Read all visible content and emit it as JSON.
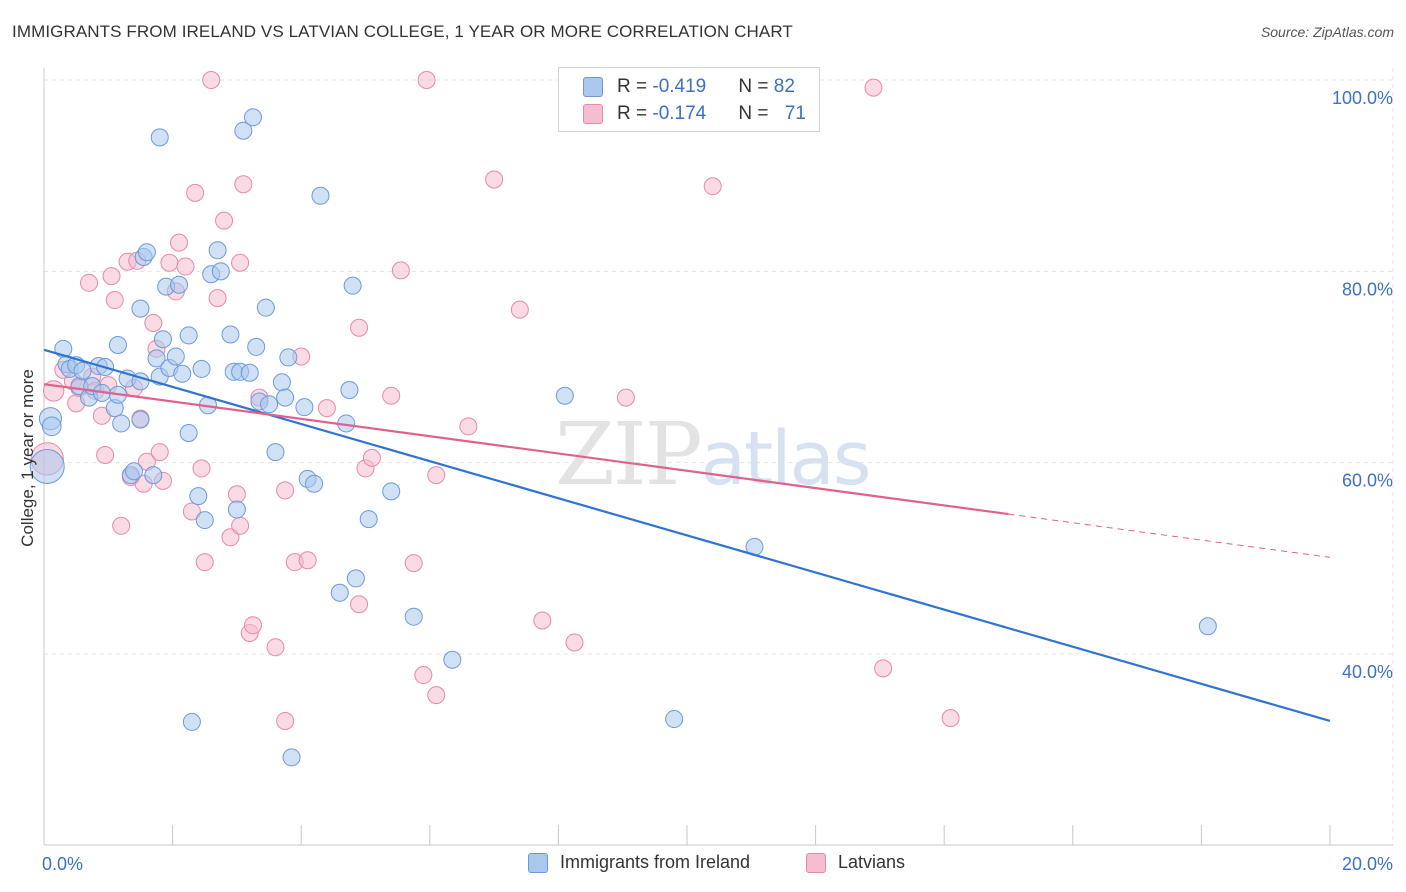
{
  "title": "IMMIGRANTS FROM IRELAND VS LATVIAN COLLEGE, 1 YEAR OR MORE CORRELATION CHART",
  "source": "Source: ZipAtlas.com",
  "watermark": {
    "zip": "ZIP",
    "atlas": "atlas"
  },
  "legend": {
    "rows": [
      {
        "r_label": "R = ",
        "r_value": "-0.419",
        "n_label": "N = ",
        "n_value": "82"
      },
      {
        "r_label": "R = ",
        "r_value": "-0.174",
        "n_label": "N = ",
        "n_value": "71"
      }
    ]
  },
  "bottom_legend": [
    "Immigrants from Ireland",
    "Latvians"
  ],
  "colors": {
    "blue_fill": "#aac8ee",
    "blue_stroke": "#6d9ad6",
    "blue_line": "#2f74d0",
    "pink_fill": "#f6bcd0",
    "pink_stroke": "#e58aaa",
    "pink_line": "#e0608e",
    "grid": "#e4e4e4",
    "axis_text": "#3b72c4"
  },
  "chart_data": {
    "type": "scatter",
    "title": "IMMIGRANTS FROM IRELAND VS LATVIAN COLLEGE, 1 YEAR OR MORE CORRELATION CHART",
    "xlabel": "",
    "ylabel": "College, 1 year or more",
    "xlim": [
      0,
      20
    ],
    "ylim": [
      20,
      102
    ],
    "x_ticks": [
      {
        "value": 0,
        "label": "0.0%"
      },
      {
        "value": 20,
        "label": "20.0%"
      }
    ],
    "y_ticks": [
      {
        "value": 40,
        "label": "40.0%"
      },
      {
        "value": 60,
        "label": "60.0%"
      },
      {
        "value": 80,
        "label": "80.0%"
      },
      {
        "value": 100,
        "label": "100.0%"
      }
    ],
    "grid": true,
    "legend_position": "top-center",
    "series": [
      {
        "name": "Immigrants from Ireland",
        "r": -0.419,
        "n": 82,
        "trend": {
          "x": [
            0,
            20
          ],
          "y": [
            71.8,
            33.0
          ],
          "dashed_from": null
        },
        "points": [
          [
            0.05,
            59.6,
            2.0
          ],
          [
            0.1,
            64.6,
            1.3
          ],
          [
            0.12,
            63.8,
            1.1
          ],
          [
            0.3,
            71.9,
            1.0
          ],
          [
            0.35,
            70.3,
            1.0
          ],
          [
            0.4,
            69.8,
            1.0
          ],
          [
            0.5,
            70.2,
            1.0
          ],
          [
            0.55,
            68.0,
            1.0
          ],
          [
            0.6,
            69.6,
            1.0
          ],
          [
            0.7,
            66.8,
            1.0
          ],
          [
            0.75,
            68.0,
            1.0
          ],
          [
            0.85,
            70.1,
            1.0
          ],
          [
            0.9,
            67.3,
            1.0
          ],
          [
            0.95,
            70.0,
            1.0
          ],
          [
            1.1,
            65.7,
            1.0
          ],
          [
            1.2,
            64.1,
            1.0
          ],
          [
            1.15,
            67.1,
            1.0
          ],
          [
            1.15,
            72.3,
            1.0
          ],
          [
            1.3,
            68.8,
            1.0
          ],
          [
            1.35,
            58.7,
            1.0
          ],
          [
            1.4,
            59.1,
            1.0
          ],
          [
            1.5,
            68.5,
            1.0
          ],
          [
            1.5,
            64.5,
            1.0
          ],
          [
            1.5,
            76.1,
            1.0
          ],
          [
            1.55,
            81.5,
            1.0
          ],
          [
            1.6,
            82.0,
            1.0
          ],
          [
            1.7,
            58.7,
            1.0
          ],
          [
            1.75,
            70.9,
            1.0
          ],
          [
            1.8,
            69.0,
            1.0
          ],
          [
            1.8,
            94.0,
            1.0
          ],
          [
            1.85,
            72.9,
            1.0
          ],
          [
            1.9,
            78.4,
            1.0
          ],
          [
            1.95,
            69.9,
            1.0
          ],
          [
            2.05,
            71.1,
            1.0
          ],
          [
            2.1,
            78.6,
            1.0
          ],
          [
            2.15,
            69.3,
            1.0
          ],
          [
            2.25,
            63.1,
            1.0
          ],
          [
            2.25,
            73.3,
            1.0
          ],
          [
            2.3,
            32.9,
            1.0
          ],
          [
            2.4,
            56.5,
            1.0
          ],
          [
            2.45,
            69.8,
            1.0
          ],
          [
            2.5,
            54.0,
            1.0
          ],
          [
            2.55,
            66.0,
            1.0
          ],
          [
            2.6,
            79.7,
            1.0
          ],
          [
            2.7,
            82.2,
            1.0
          ],
          [
            2.75,
            80.0,
            1.0
          ],
          [
            2.9,
            73.4,
            1.0
          ],
          [
            2.95,
            69.5,
            1.0
          ],
          [
            3.0,
            55.1,
            1.0
          ],
          [
            3.05,
            69.5,
            1.0
          ],
          [
            3.1,
            94.7,
            1.0
          ],
          [
            3.2,
            69.4,
            1.0
          ],
          [
            3.25,
            96.1,
            1.0
          ],
          [
            3.3,
            72.1,
            1.0
          ],
          [
            3.35,
            66.4,
            1.0
          ],
          [
            3.45,
            76.2,
            1.0
          ],
          [
            3.5,
            66.1,
            1.0
          ],
          [
            3.6,
            61.1,
            1.0
          ],
          [
            3.7,
            68.4,
            1.0
          ],
          [
            3.75,
            66.8,
            1.0
          ],
          [
            3.8,
            71.0,
            1.0
          ],
          [
            3.85,
            29.2,
            1.0
          ],
          [
            4.05,
            65.8,
            1.0
          ],
          [
            4.1,
            58.3,
            1.0
          ],
          [
            4.2,
            57.8,
            1.0
          ],
          [
            4.3,
            87.9,
            1.0
          ],
          [
            4.6,
            46.4,
            1.0
          ],
          [
            4.7,
            64.1,
            1.0
          ],
          [
            4.75,
            67.6,
            1.0
          ],
          [
            4.8,
            78.5,
            1.0
          ],
          [
            4.85,
            47.9,
            1.0
          ],
          [
            5.05,
            54.1,
            1.0
          ],
          [
            5.4,
            57.0,
            1.0
          ],
          [
            5.75,
            43.9,
            1.0
          ],
          [
            6.35,
            39.4,
            1.0
          ],
          [
            8.1,
            67.0,
            1.0
          ],
          [
            9.8,
            33.2,
            1.0
          ],
          [
            11.05,
            51.2,
            1.0
          ],
          [
            18.1,
            42.9,
            1.0
          ]
        ]
      },
      {
        "name": "Latvians",
        "r": -0.174,
        "n": 71,
        "trend": {
          "x": [
            0,
            20
          ],
          "y": [
            68.2,
            50.1
          ],
          "dashed_from": 15.0
        },
        "points": [
          [
            0.05,
            60.4,
            1.9
          ],
          [
            0.15,
            67.5,
            1.2
          ],
          [
            0.3,
            69.7,
            1.0
          ],
          [
            0.45,
            68.5,
            1.0
          ],
          [
            0.5,
            66.2,
            1.0
          ],
          [
            0.55,
            67.8,
            1.0
          ],
          [
            0.7,
            78.8,
            1.0
          ],
          [
            0.75,
            69.0,
            1.0
          ],
          [
            0.8,
            67.5,
            1.0
          ],
          [
            0.9,
            64.9,
            1.0
          ],
          [
            0.95,
            60.8,
            1.0
          ],
          [
            1.0,
            68.1,
            1.0
          ],
          [
            1.05,
            79.5,
            1.0
          ],
          [
            1.1,
            77.0,
            1.0
          ],
          [
            1.2,
            53.4,
            1.0
          ],
          [
            1.3,
            81.0,
            1.0
          ],
          [
            1.35,
            58.5,
            1.0
          ],
          [
            1.4,
            67.8,
            1.0
          ],
          [
            1.45,
            81.1,
            1.0
          ],
          [
            1.5,
            64.6,
            1.0
          ],
          [
            1.55,
            57.8,
            1.0
          ],
          [
            1.6,
            60.1,
            1.0
          ],
          [
            1.7,
            74.6,
            1.0
          ],
          [
            1.75,
            71.9,
            1.0
          ],
          [
            1.8,
            61.1,
            1.0
          ],
          [
            1.85,
            58.1,
            1.0
          ],
          [
            1.95,
            80.9,
            1.0
          ],
          [
            2.05,
            77.9,
            1.0
          ],
          [
            2.1,
            83.0,
            1.0
          ],
          [
            2.2,
            80.5,
            1.0
          ],
          [
            2.3,
            54.9,
            1.0
          ],
          [
            2.35,
            88.2,
            1.0
          ],
          [
            2.45,
            59.4,
            1.0
          ],
          [
            2.5,
            49.6,
            1.0
          ],
          [
            2.6,
            100.0,
            1.0
          ],
          [
            2.7,
            77.2,
            1.0
          ],
          [
            2.8,
            85.3,
            1.0
          ],
          [
            2.9,
            52.2,
            1.0
          ],
          [
            3.0,
            56.7,
            1.0
          ],
          [
            3.05,
            53.4,
            1.0
          ],
          [
            3.05,
            80.9,
            1.0
          ],
          [
            3.1,
            89.1,
            1.0
          ],
          [
            3.2,
            42.2,
            1.0
          ],
          [
            3.25,
            43.0,
            1.0
          ],
          [
            3.35,
            66.8,
            1.0
          ],
          [
            3.6,
            40.7,
            1.0
          ],
          [
            3.75,
            33.0,
            1.0
          ],
          [
            3.75,
            57.1,
            1.0
          ],
          [
            3.9,
            49.6,
            1.0
          ],
          [
            4.0,
            71.1,
            1.0
          ],
          [
            4.1,
            49.8,
            1.0
          ],
          [
            4.4,
            65.7,
            1.0
          ],
          [
            4.9,
            74.1,
            1.0
          ],
          [
            4.9,
            45.2,
            1.0
          ],
          [
            5.0,
            59.4,
            1.0
          ],
          [
            5.1,
            60.5,
            1.0
          ],
          [
            5.4,
            67.0,
            1.0
          ],
          [
            5.55,
            80.1,
            1.0
          ],
          [
            5.75,
            49.5,
            1.0
          ],
          [
            5.9,
            37.8,
            1.0
          ],
          [
            5.95,
            100.0,
            1.0
          ],
          [
            6.1,
            58.7,
            1.0
          ],
          [
            6.1,
            35.7,
            1.0
          ],
          [
            6.6,
            63.8,
            1.0
          ],
          [
            7.0,
            89.6,
            1.0
          ],
          [
            7.4,
            76.0,
            1.0
          ],
          [
            7.75,
            43.5,
            1.0
          ],
          [
            8.25,
            41.2,
            1.0
          ],
          [
            9.05,
            66.8,
            1.0
          ],
          [
            10.4,
            88.9,
            1.0
          ],
          [
            12.9,
            99.2,
            1.0
          ],
          [
            13.05,
            38.5,
            1.0
          ],
          [
            14.1,
            33.3,
            1.0
          ]
        ]
      }
    ]
  }
}
